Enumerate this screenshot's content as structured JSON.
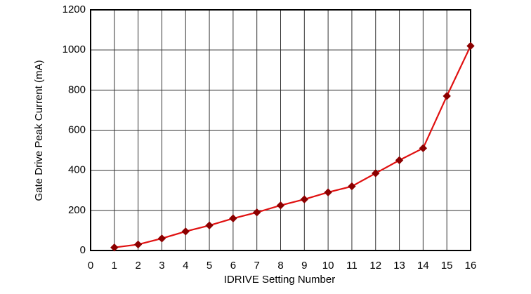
{
  "chart_data": {
    "type": "line",
    "x_label": "IDRIVE Setting Number",
    "y_label": "Gate Drive Peak Current (mA)",
    "x": [
      1,
      2,
      3,
      4,
      5,
      6,
      7,
      8,
      9,
      10,
      11,
      12,
      13,
      14,
      15,
      16
    ],
    "series": [
      {
        "color": "#e01010",
        "marker_color": "#8b0000",
        "values": [
          15,
          30,
          60,
          95,
          125,
          160,
          190,
          225,
          255,
          290,
          320,
          385,
          450,
          510,
          770,
          1020
        ]
      }
    ],
    "xlim": [
      0,
      16
    ],
    "xticks": [
      0,
      1,
      2,
      3,
      4,
      5,
      6,
      7,
      8,
      9,
      10,
      11,
      12,
      13,
      14,
      15,
      16
    ],
    "ylim": [
      0,
      1200
    ],
    "yticks": [
      0,
      200,
      400,
      600,
      800,
      1000,
      1200
    ],
    "grid": true
  }
}
